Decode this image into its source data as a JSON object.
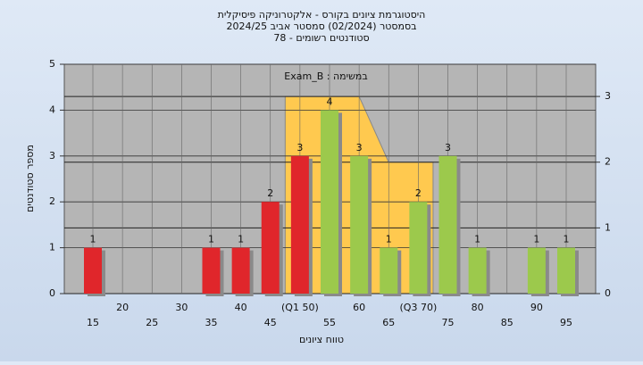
{
  "chart_data": {
    "type": "bar",
    "title": [
      "היסטוגרמת ציונים בקורס - אלקטרוניקה פיסיקלית",
      "בסמסטר  (02/2024)  סמסטר אביב 2024/25",
      "סטודנטים רשומים - 78"
    ],
    "annotation": "במשימה : Exam_B",
    "x_label": "טווח ציונים",
    "y_label": "מספר סטודנטים",
    "categories": [
      "15",
      "20",
      "25",
      "30",
      "35",
      "40",
      "45",
      "(Q1 50)",
      "55",
      "60",
      "65",
      "(Q3 70)",
      "75",
      "80",
      "85",
      "90",
      "95"
    ],
    "values": [
      1,
      0,
      0,
      0,
      1,
      1,
      2,
      3,
      4,
      3,
      1,
      2,
      3,
      1,
      0,
      1,
      1
    ],
    "colors": [
      "#e0262b",
      "#e0262b",
      "#e0262b",
      "#e0262b",
      "#e0262b",
      "#e0262b",
      "#e0262b",
      "#e0262b",
      "#9cc94c",
      "#9cc94c",
      "#9cc94c",
      "#9cc94c",
      "#9cc94c",
      "#9cc94c",
      "#9cc94c",
      "#9cc94c",
      "#9cc94c"
    ],
    "overlay": {
      "axis": "y2",
      "color": "#ffc94f",
      "values": [
        null,
        null,
        null,
        null,
        null,
        null,
        null,
        3,
        3,
        3,
        2,
        2,
        null,
        null,
        null,
        null,
        null
      ]
    },
    "ylim": [
      0,
      5
    ],
    "yticks": [
      0,
      1,
      2,
      3,
      4,
      5
    ],
    "y2lim": [
      0,
      3.49
    ],
    "y2ticks": [
      0,
      1,
      2,
      3
    ],
    "grid": true
  }
}
